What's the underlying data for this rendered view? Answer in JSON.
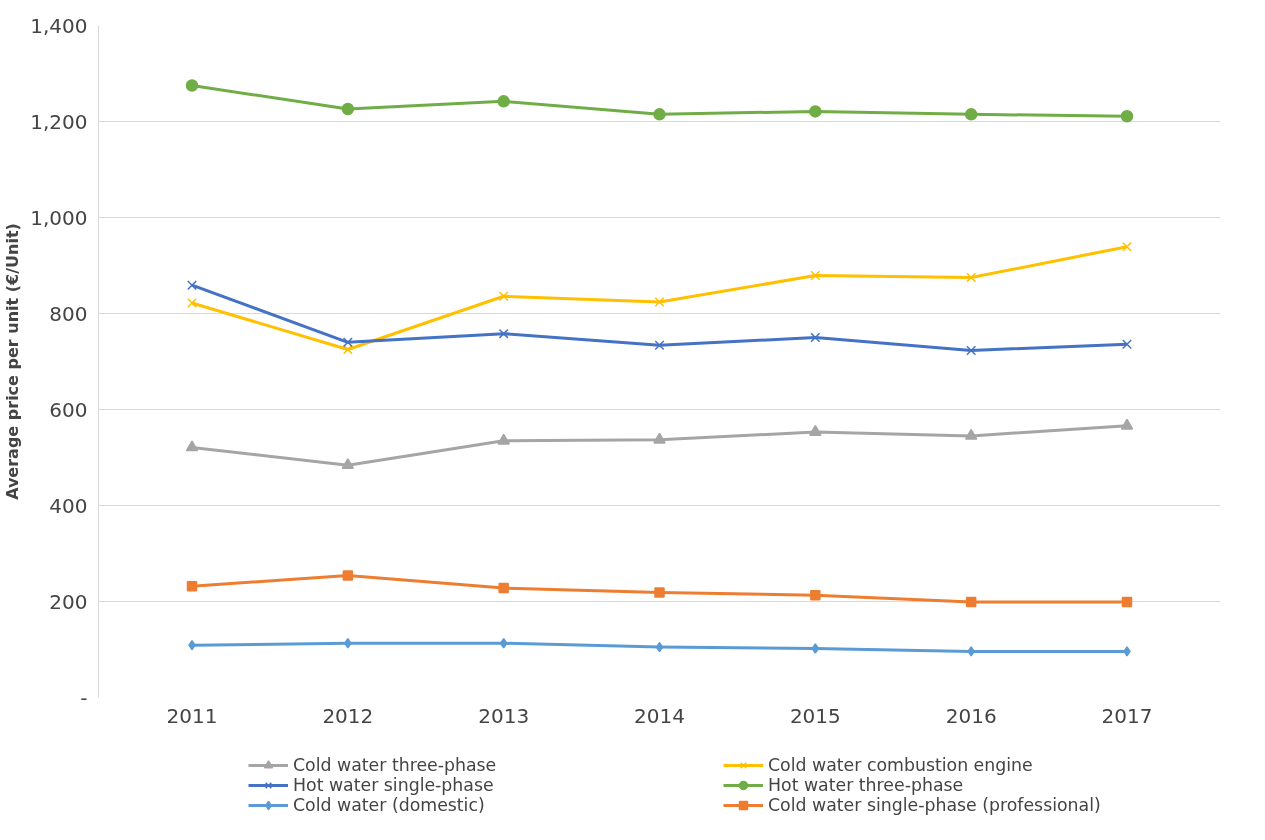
{
  "chart_data": {
    "type": "line",
    "ylabel": "Average price per unit (€/Unit)",
    "categories": [
      "2011",
      "2012",
      "2013",
      "2014",
      "2015",
      "2016",
      "2017"
    ],
    "ylim": [
      0,
      1400
    ],
    "yticks": [
      {
        "value": 0,
        "label": "-"
      },
      {
        "value": 200,
        "label": "200"
      },
      {
        "value": 400,
        "label": "400"
      },
      {
        "value": 600,
        "label": "600"
      },
      {
        "value": 800,
        "label": "800"
      },
      {
        "value": 1000,
        "label": "1,000"
      },
      {
        "value": 1200,
        "label": "1,200"
      },
      {
        "value": 1400,
        "label": "1,400"
      }
    ],
    "grid": "y",
    "legend": "bottom",
    "line_style": "solid",
    "series": [
      {
        "name": "Cold water three-phase",
        "color": "#a5a5a5",
        "marker": "triangle",
        "values": [
          521,
          484,
          535,
          537,
          553,
          545,
          566
        ]
      },
      {
        "name": "Cold water combustion engine",
        "color": "#ffc000",
        "marker": "cross",
        "values": [
          822,
          725,
          836,
          824,
          879,
          875,
          939
        ]
      },
      {
        "name": "Hot water single-phase",
        "color": "#4472c4",
        "marker": "cross",
        "values": [
          859,
          740,
          758,
          734,
          750,
          723,
          736
        ]
      },
      {
        "name": "Hot water three-phase",
        "color": "#70ad47",
        "marker": "circle",
        "values": [
          1275,
          1226,
          1242,
          1215,
          1221,
          1215,
          1211
        ]
      },
      {
        "name": "Cold water (domestic)",
        "color": "#5b9bd5",
        "marker": "diamond",
        "values": [
          109,
          113,
          113,
          105,
          102,
          96,
          96
        ]
      },
      {
        "name": "Cold water single-phase (professional)",
        "color": "#ed7d31",
        "marker": "square",
        "values": [
          232,
          254,
          228,
          219,
          213,
          199,
          199
        ]
      }
    ]
  }
}
